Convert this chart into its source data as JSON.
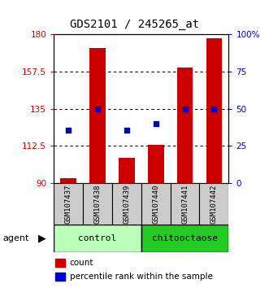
{
  "title": "GDS2101 / 245265_at",
  "samples": [
    "GSM107437",
    "GSM107438",
    "GSM107439",
    "GSM107440",
    "GSM107441",
    "GSM107442"
  ],
  "groups": [
    "control",
    "control",
    "control",
    "chitooctaose",
    "chitooctaose",
    "chitooctaose"
  ],
  "counts": [
    93,
    172,
    105,
    113,
    160,
    178
  ],
  "percentile_left_vals": [
    122,
    135,
    122,
    126,
    135,
    135
  ],
  "ylim_left": [
    90,
    180
  ],
  "ylim_right": [
    0,
    100
  ],
  "yticks_left": [
    90,
    112.5,
    135,
    157.5,
    180
  ],
  "ytick_labels_left": [
    "90",
    "112.5",
    "135",
    "157.5",
    "180"
  ],
  "yticks_right": [
    0,
    25,
    50,
    75,
    100
  ],
  "ytick_labels_right": [
    "0",
    "25",
    "50",
    "75",
    "100%"
  ],
  "bar_color": "#cc0000",
  "dot_color": "#0000cc",
  "control_color": "#bbffbb",
  "chitooctaose_color": "#22cc22",
  "sample_box_color": "#cccccc",
  "agent_label": "agent",
  "legend_count_label": "count",
  "legend_percentile_label": "percentile rank within the sample",
  "bar_width": 0.55,
  "dot_size": 22,
  "left_axis_color": "#cc0000",
  "right_axis_color": "#0000cc",
  "title_fontsize": 10,
  "tick_fontsize": 7.5,
  "sample_fontsize": 6.5,
  "group_fontsize": 8
}
